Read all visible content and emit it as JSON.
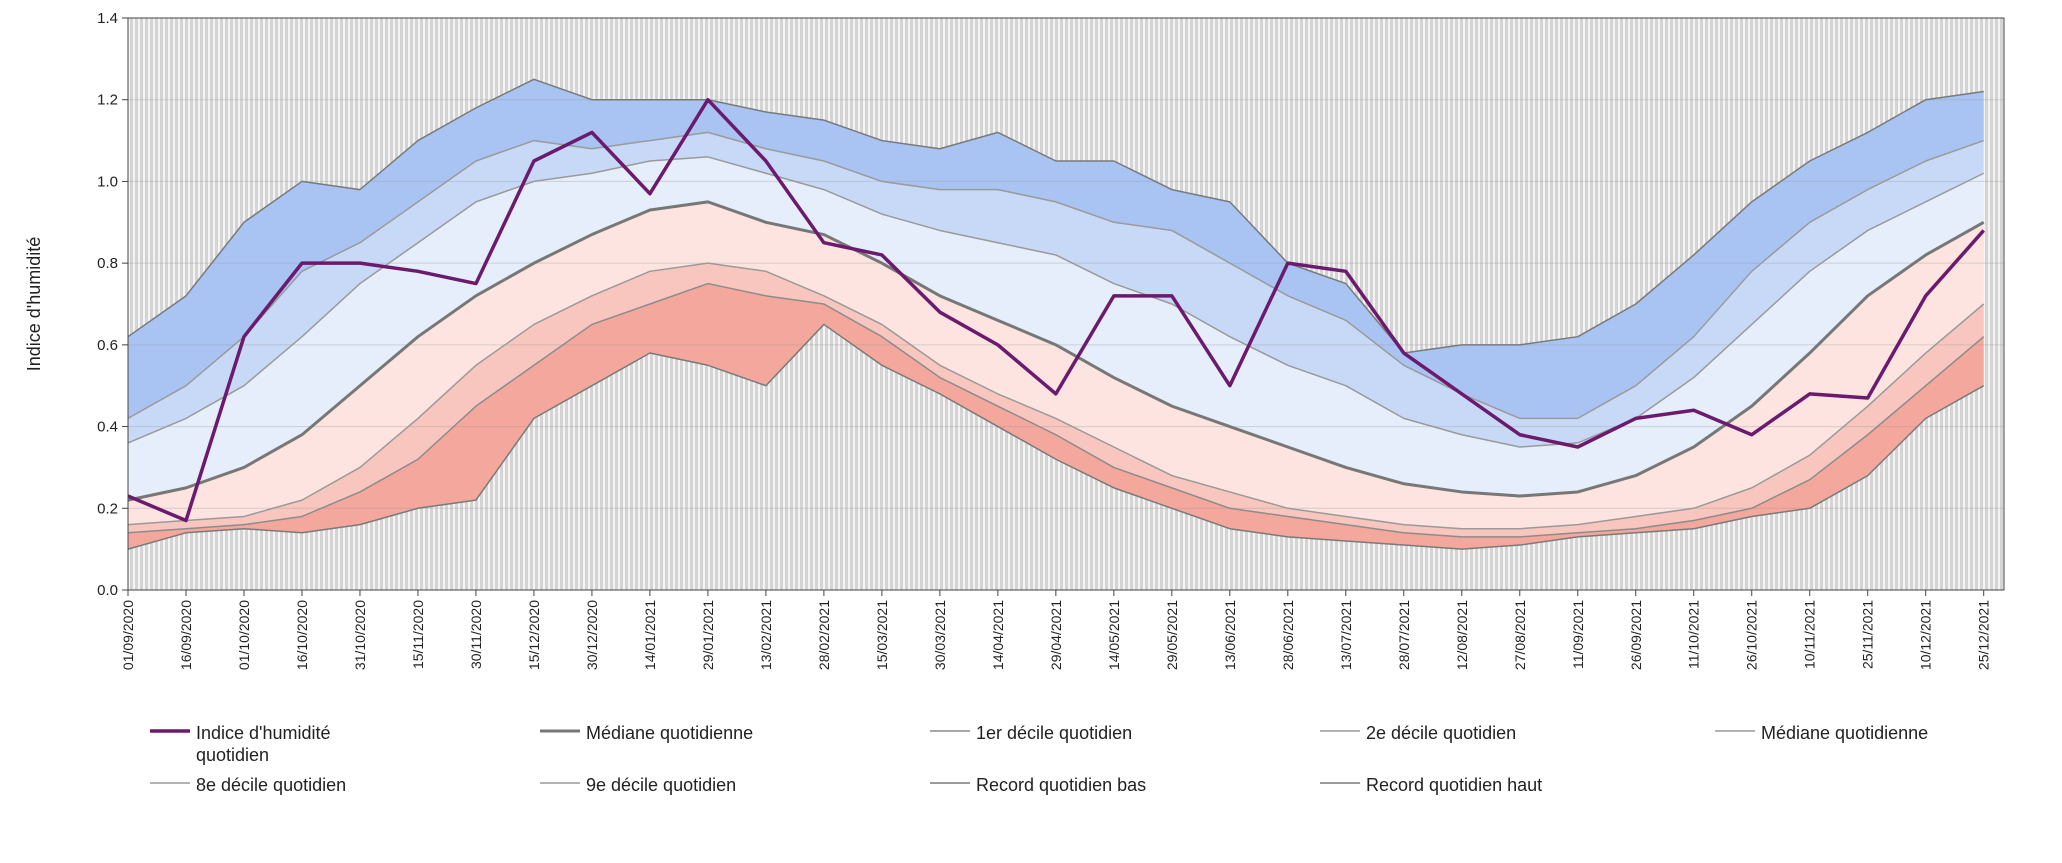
{
  "chart_data": {
    "type": "line",
    "y_label": "Indice d'humidité",
    "x": [
      "01/09/2020",
      "16/09/2020",
      "01/10/2020",
      "16/10/2020",
      "31/10/2020",
      "15/11/2020",
      "30/11/2020",
      "15/12/2020",
      "30/12/2020",
      "14/01/2021",
      "29/01/2021",
      "13/02/2021",
      "28/02/2021",
      "15/03/2021",
      "30/03/2021",
      "14/04/2021",
      "29/04/2021",
      "14/05/2021",
      "29/05/2021",
      "13/06/2021",
      "28/06/2021",
      "13/07/2021",
      "28/07/2021",
      "12/08/2021",
      "27/08/2021",
      "11/09/2021",
      "26/09/2021",
      "11/10/2021",
      "26/10/2021",
      "10/11/2021",
      "25/11/2021",
      "10/12/2021",
      "25/12/2021"
    ],
    "ylim": [
      0,
      1.4
    ],
    "yticks": [
      {
        "value": 0,
        "label": "0.0"
      },
      0.2,
      0.4,
      0.6,
      0.8,
      {
        "value": 1,
        "label": "1.0"
      },
      1.2,
      1.4
    ],
    "grid": true,
    "series": [
      {
        "name": "Indice d'humidité quotidien",
        "color": "#6b1a6e",
        "values": [
          0.23,
          0.17,
          0.62,
          0.8,
          0.8,
          0.78,
          0.75,
          1.05,
          1.12,
          0.97,
          1.2,
          1.05,
          0.85,
          0.82,
          0.68,
          0.6,
          0.48,
          0.72,
          0.72,
          0.5,
          0.8,
          0.78,
          0.58,
          0.48,
          0.38,
          0.35,
          0.42,
          0.44,
          0.38,
          0.48,
          0.47,
          0.72,
          0.88
        ]
      },
      {
        "name": "Médiane quotidienne",
        "color": "#777777",
        "fill": "#e6eefc",
        "values": [
          0.22,
          0.25,
          0.3,
          0.38,
          0.5,
          0.62,
          0.72,
          0.8,
          0.87,
          0.93,
          0.95,
          0.9,
          0.87,
          0.8,
          0.72,
          0.66,
          0.6,
          0.52,
          0.45,
          0.4,
          0.35,
          0.3,
          0.26,
          0.24,
          0.23,
          0.24,
          0.28,
          0.35,
          0.45,
          0.58,
          0.72,
          0.82,
          0.9
        ]
      },
      {
        "name": "1er décile quotidien",
        "color": "#8c8c8c",
        "fill": "#f8c6be",
        "values": [
          0.14,
          0.15,
          0.16,
          0.18,
          0.24,
          0.32,
          0.45,
          0.55,
          0.65,
          0.7,
          0.75,
          0.72,
          0.7,
          0.62,
          0.52,
          0.45,
          0.38,
          0.3,
          0.25,
          0.2,
          0.18,
          0.16,
          0.14,
          0.13,
          0.13,
          0.14,
          0.15,
          0.17,
          0.2,
          0.27,
          0.38,
          0.5,
          0.62
        ]
      },
      {
        "name": "2e décile quotidien",
        "color": "#9a9a9a",
        "fill": "#fde4e0",
        "values": [
          0.16,
          0.17,
          0.18,
          0.22,
          0.3,
          0.42,
          0.55,
          0.65,
          0.72,
          0.78,
          0.8,
          0.78,
          0.72,
          0.65,
          0.55,
          0.48,
          0.42,
          0.35,
          0.28,
          0.24,
          0.2,
          0.18,
          0.16,
          0.15,
          0.15,
          0.16,
          0.18,
          0.2,
          0.25,
          0.33,
          0.45,
          0.58,
          0.7
        ]
      },
      {
        "name": "Médiane quotidienne",
        "color": "#9a9a9a"
      },
      {
        "name": "8e décile quotidien",
        "color": "#9a9a9a",
        "fill": "#c8d9f8",
        "values": [
          0.36,
          0.42,
          0.5,
          0.62,
          0.75,
          0.85,
          0.95,
          1.0,
          1.02,
          1.05,
          1.06,
          1.02,
          0.98,
          0.92,
          0.88,
          0.85,
          0.82,
          0.75,
          0.7,
          0.62,
          0.55,
          0.5,
          0.42,
          0.38,
          0.35,
          0.36,
          0.42,
          0.52,
          0.65,
          0.78,
          0.88,
          0.95,
          1.02
        ]
      },
      {
        "name": "9e décile quotidien",
        "color": "#9a9a9a",
        "fill": "#a9c3f3",
        "values": [
          0.42,
          0.5,
          0.62,
          0.78,
          0.85,
          0.95,
          1.05,
          1.1,
          1.08,
          1.1,
          1.12,
          1.08,
          1.05,
          1.0,
          0.98,
          0.98,
          0.95,
          0.9,
          0.88,
          0.8,
          0.72,
          0.66,
          0.55,
          0.48,
          0.42,
          0.42,
          0.5,
          0.62,
          0.78,
          0.9,
          0.98,
          1.05,
          1.1
        ]
      },
      {
        "name": "Record quotidien bas",
        "color": "#7a7a7a",
        "fill": "#f4a79c",
        "values": [
          0.1,
          0.14,
          0.15,
          0.14,
          0.16,
          0.2,
          0.22,
          0.42,
          0.5,
          0.58,
          0.55,
          0.5,
          0.65,
          0.55,
          0.48,
          0.4,
          0.32,
          0.25,
          0.2,
          0.15,
          0.13,
          0.12,
          0.11,
          0.1,
          0.11,
          0.13,
          0.14,
          0.15,
          0.18,
          0.2,
          0.28,
          0.42,
          0.5
        ]
      },
      {
        "name": "Record quotidien haut",
        "color": "#7a7a7a",
        "values": [
          0.62,
          0.72,
          0.9,
          1.0,
          0.98,
          1.1,
          1.18,
          1.25,
          1.2,
          1.2,
          1.2,
          1.17,
          1.15,
          1.1,
          1.08,
          1.12,
          1.05,
          1.05,
          0.98,
          0.95,
          0.8,
          0.75,
          0.58,
          0.6,
          0.6,
          0.62,
          0.7,
          0.82,
          0.95,
          1.05,
          1.12,
          1.2,
          1.22
        ]
      }
    ]
  }
}
